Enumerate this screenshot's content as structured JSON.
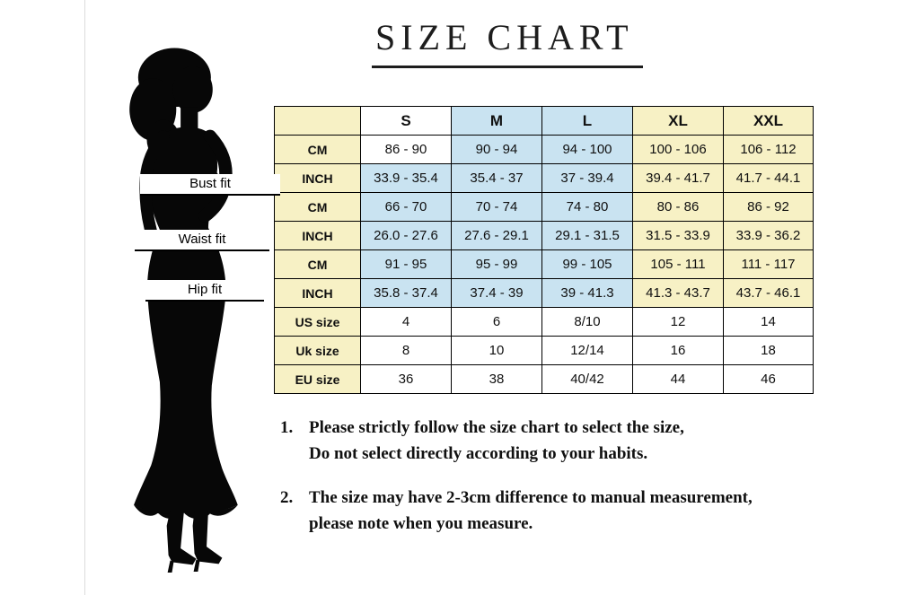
{
  "title": "SIZE CHART",
  "silhouette": {
    "name": "woman-silhouette",
    "color": "#070707"
  },
  "fit_labels": [
    {
      "label": "Bust fit"
    },
    {
      "label": "Waist fit"
    },
    {
      "label": "Hip fit"
    }
  ],
  "chart_data": {
    "type": "table",
    "title": "SIZE CHART",
    "columns": [
      "",
      "S",
      "M",
      "L",
      "XL",
      "XXL"
    ],
    "header_bg": [
      "y",
      "w",
      "b",
      "b",
      "y",
      "y"
    ],
    "rows": [
      {
        "label": "CM",
        "measure": "Bust fit",
        "values": [
          "86 - 90",
          "90 - 94",
          "94 - 100",
          "100 - 106",
          "106 - 112"
        ],
        "bg": [
          "y",
          "w",
          "b",
          "b",
          "y",
          "y"
        ]
      },
      {
        "label": "INCH",
        "measure": "Bust fit",
        "values": [
          "33.9 - 35.4",
          "35.4 - 37",
          "37 - 39.4",
          "39.4 - 41.7",
          "41.7 - 44.1"
        ],
        "bg": [
          "y",
          "b",
          "b",
          "b",
          "y",
          "y"
        ]
      },
      {
        "label": "CM",
        "measure": "Waist fit",
        "values": [
          "66 - 70",
          "70 - 74",
          "74 - 80",
          "80 - 86",
          "86 - 92"
        ],
        "bg": [
          "y",
          "b",
          "b",
          "b",
          "y",
          "y"
        ]
      },
      {
        "label": "INCH",
        "measure": "Waist fit",
        "values": [
          "26.0 - 27.6",
          "27.6 - 29.1",
          "29.1 - 31.5",
          "31.5 - 33.9",
          "33.9 - 36.2"
        ],
        "bg": [
          "y",
          "b",
          "b",
          "b",
          "y",
          "y"
        ]
      },
      {
        "label": "CM",
        "measure": "Hip fit",
        "values": [
          "91 - 95",
          "95 - 99",
          "99 - 105",
          "105 - 111",
          "111 - 117"
        ],
        "bg": [
          "y",
          "b",
          "b",
          "b",
          "y",
          "y"
        ]
      },
      {
        "label": "INCH",
        "measure": "Hip fit",
        "values": [
          "35.8 - 37.4",
          "37.4 - 39",
          "39 - 41.3",
          "41.3 - 43.7",
          "43.7 - 46.1"
        ],
        "bg": [
          "y",
          "b",
          "b",
          "b",
          "y",
          "y"
        ]
      },
      {
        "label": "US size",
        "values": [
          "4",
          "6",
          "8/10",
          "12",
          "14"
        ],
        "bg": [
          "y",
          "w",
          "w",
          "w",
          "w",
          "w"
        ]
      },
      {
        "label": "Uk size",
        "values": [
          "8",
          "10",
          "12/14",
          "16",
          "18"
        ],
        "bg": [
          "y",
          "w",
          "w",
          "w",
          "w",
          "w"
        ]
      },
      {
        "label": "EU size",
        "values": [
          "36",
          "38",
          "40/42",
          "44",
          "46"
        ],
        "bg": [
          "y",
          "w",
          "w",
          "w",
          "w",
          "w"
        ]
      }
    ],
    "colors": {
      "y": "#f7f1c5",
      "b": "#c9e3f1",
      "w": "#ffffff"
    },
    "grid": true,
    "legend_position": "none"
  },
  "notes": [
    {
      "number": "1.",
      "lines": [
        "Please strictly follow the size chart to select the size,",
        "Do not select directly according to your habits."
      ]
    },
    {
      "number": "2.",
      "lines": [
        "The size may have 2-3cm difference  to manual measurement,",
        "please note when you measure."
      ]
    }
  ]
}
